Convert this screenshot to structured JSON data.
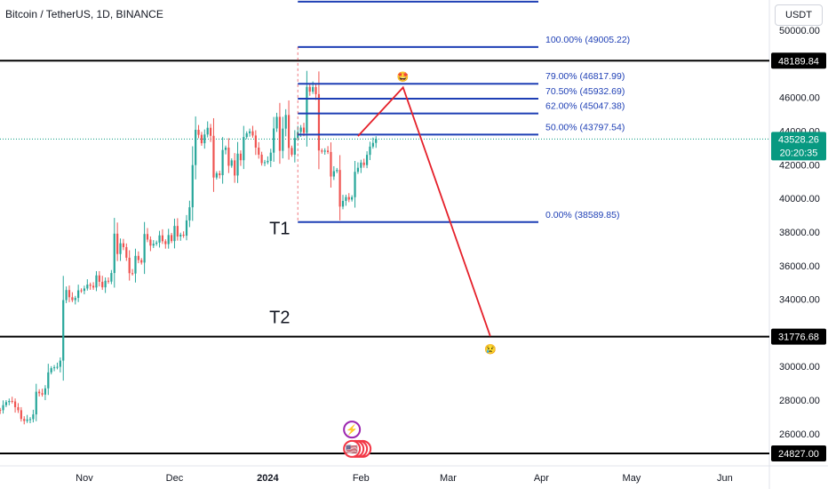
{
  "header": {
    "title": "Bitcoin / TetherUS, 1D, BINANCE",
    "unit": "USDT"
  },
  "colors": {
    "up": "#26a69a",
    "down": "#ef5350",
    "fib": "#1e3fb5",
    "arrow": "#e5202a",
    "level": "#000000",
    "current": "#089981"
  },
  "chart_data": {
    "type": "candlestick",
    "yaxis": {
      "ticks": [
        26000,
        28000,
        30000,
        32000,
        34000,
        36000,
        38000,
        40000,
        42000,
        44000,
        46000,
        48000,
        50000
      ],
      "tick_labels": [
        "26000.00",
        "28000.00",
        "30000.00",
        "32000.00",
        "34000.00",
        "36000.00",
        "38000.00",
        "40000.00",
        "42000.00",
        "44000.00",
        "46000.00",
        "48000.00",
        "50000.00"
      ],
      "range": [
        24300,
        51800
      ]
    },
    "xaxis": {
      "range": [
        "2023-10-01",
        "2024-06-30"
      ],
      "ticks": [
        {
          "date": "2023-11-01",
          "label": "Nov",
          "bold": false
        },
        {
          "date": "2023-12-01",
          "label": "Dec",
          "bold": false
        },
        {
          "date": "2024-01-01",
          "label": "2024",
          "bold": true
        },
        {
          "date": "2024-02-01",
          "label": "Feb",
          "bold": false
        },
        {
          "date": "2024-03-01",
          "label": "Mar",
          "bold": false
        },
        {
          "date": "2024-04-01",
          "label": "Apr",
          "bold": false
        },
        {
          "date": "2024-05-01",
          "label": "May",
          "bold": false
        },
        {
          "date": "2024-06-01",
          "label": "Jun",
          "bold": false
        }
      ]
    },
    "fib_retracement": {
      "start": "2024-01-11",
      "end": "2024-03-31",
      "levels": [
        {
          "label": "100.00% (49005.22)",
          "price": 49005.22
        },
        {
          "label": "79.00% (46817.99)",
          "price": 46817.99
        },
        {
          "label": "70.50% (45932.69)",
          "price": 45932.69
        },
        {
          "label": "62.00% (45047.38)",
          "price": 45047.38
        },
        {
          "label": "50.00% (43797.54)",
          "price": 43797.54
        },
        {
          "label": "0.00% (38589.85)",
          "price": 38589.85
        }
      ],
      "extra_line_price": 51700
    },
    "horizontal_levels": [
      {
        "price": 48189.84,
        "label": "48189.84"
      },
      {
        "price": 31776.68,
        "label": "31776.68"
      },
      {
        "price": 24827.0,
        "label": "24827.00"
      }
    ],
    "current_price": {
      "price": 43528.26,
      "label": "43528.26",
      "countdown": "20:20:35"
    },
    "annotations": [
      {
        "text": "T1",
        "date": "2024-01-09",
        "price": 38300
      },
      {
        "text": "T2",
        "date": "2024-01-09",
        "price": 33000
      }
    ],
    "projection_path": [
      {
        "date": "2024-01-31",
        "price": 43700
      },
      {
        "date": "2024-02-15",
        "price": 46600
      },
      {
        "date": "2024-03-15",
        "price": 31800
      }
    ],
    "emoji_markers": [
      {
        "emoji": "🤩",
        "date": "2024-02-15",
        "price": 47400
      },
      {
        "emoji": "😢",
        "date": "2024-03-15",
        "price": 31200
      }
    ],
    "event_markers": [
      {
        "emoji": "⚡",
        "date": "2024-01-29",
        "price": 26250
      },
      {
        "emoji": "🇺🇸",
        "date": "2024-01-29",
        "price": 25100
      }
    ],
    "candles": {
      "start": "2023-10-01",
      "open_first": 27000,
      "closes": [
        27050,
        27500,
        27420,
        27400,
        27700,
        27880,
        27950,
        27920,
        27580,
        27400,
        26880,
        26760,
        26850,
        26870,
        27150,
        28500,
        28410,
        28330,
        28700,
        29650,
        29900,
        29950,
        29980,
        30350,
        33950,
        34550,
        34120,
        33950,
        34080,
        34530,
        34500,
        34640,
        34870,
        34800,
        34700,
        35420,
        35040,
        34710,
        35100,
        35050,
        35560,
        37900,
        36690,
        37330,
        37100,
        36470,
        35550,
        35530,
        36580,
        36330,
        36180,
        37880,
        37550,
        37190,
        37300,
        37370,
        37800,
        37450,
        37280,
        37820,
        37460,
        38360,
        37730,
        37840,
        37780,
        38690,
        39470,
        41980,
        44080,
        43780,
        43280,
        43800,
        44200,
        43720,
        41240,
        41490,
        41380,
        42880,
        43020,
        41940,
        42260,
        41360,
        42660,
        42270,
        43650,
        43870,
        43990,
        43740,
        43020,
        42600,
        42100,
        42150,
        42230,
        42720,
        44160,
        44850,
        42830,
        44150,
        44960,
        43000,
        42600,
        43590,
        43950,
        44210,
        43900,
        46630,
        46350,
        46620,
        46200,
        42850,
        42780,
        42840,
        42760,
        41300,
        41620,
        41690,
        39510,
        39850,
        40080,
        39930,
        40070,
        41580,
        41820,
        42130,
        41980,
        42590,
        43080,
        43300,
        43550
      ],
      "highs_lows_note": "shadows derived from open/close"
    }
  }
}
